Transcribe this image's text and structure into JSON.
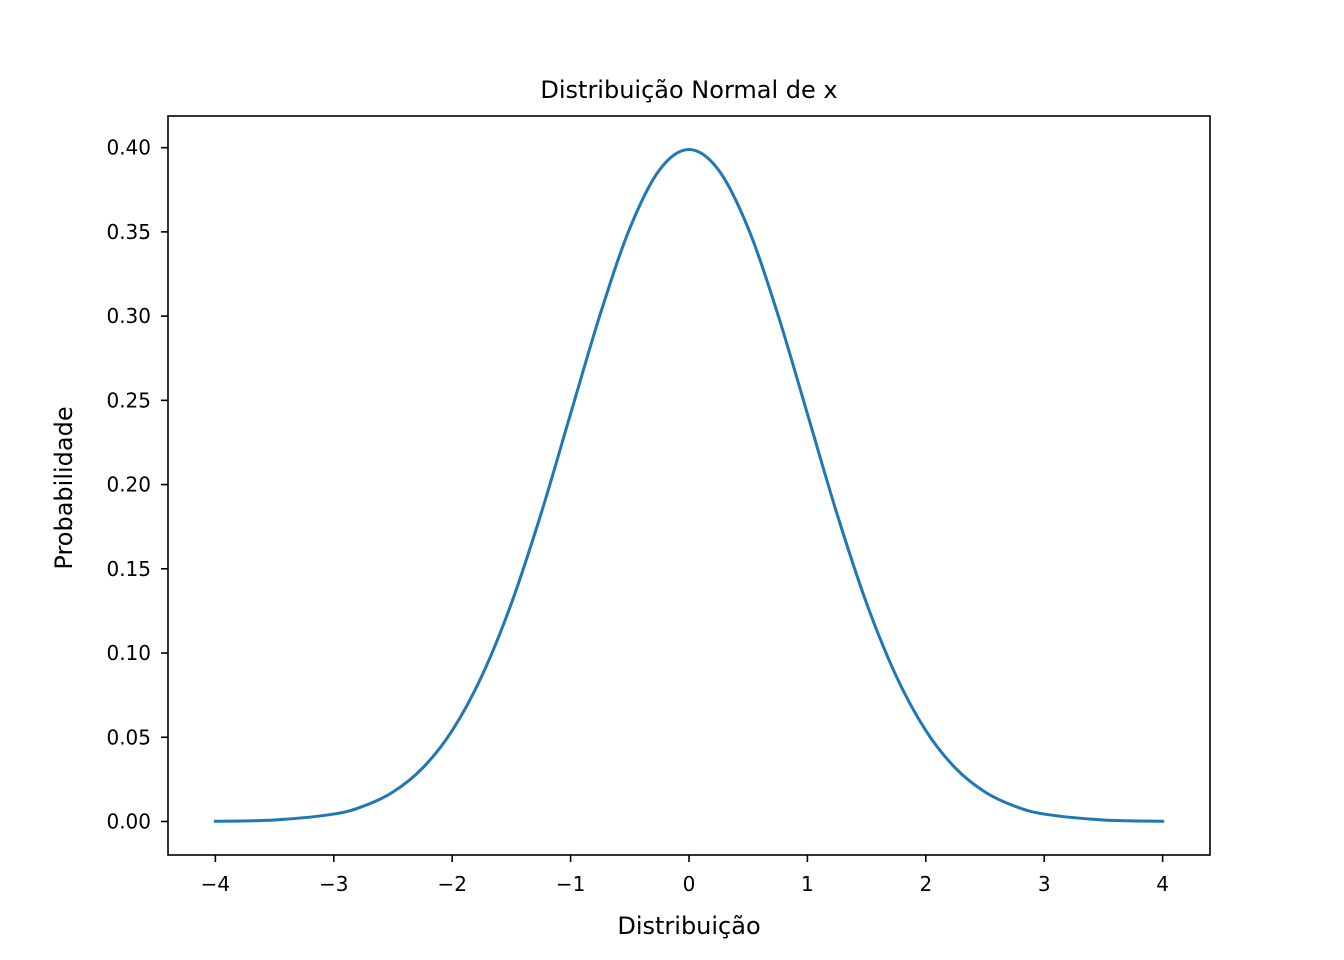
{
  "chart_data": {
    "type": "line",
    "title": "Distribuição Normal de x",
    "xlabel": "Distribuição",
    "ylabel": "Probabilidade",
    "xlim": [
      -4.4,
      4.4
    ],
    "ylim": [
      -0.0199,
      0.4188
    ],
    "x_ticks": [
      -4,
      -3,
      -2,
      -1,
      0,
      1,
      2,
      3,
      4
    ],
    "x_tick_labels": [
      "−4",
      "−3",
      "−2",
      "−1",
      "0",
      "1",
      "2",
      "3",
      "4"
    ],
    "y_ticks": [
      0.0,
      0.05,
      0.1,
      0.15,
      0.2,
      0.25,
      0.3,
      0.35,
      0.4
    ],
    "y_tick_labels": [
      "0.00",
      "0.05",
      "0.10",
      "0.15",
      "0.20",
      "0.25",
      "0.30",
      "0.35",
      "0.40"
    ],
    "grid": false,
    "series": [
      {
        "color": "#1f77b4",
        "x": [
          -4.0,
          -3.5,
          -3.0,
          -2.75,
          -2.5,
          -2.25,
          -2.0,
          -1.75,
          -1.5,
          -1.25,
          -1.0,
          -0.75,
          -0.5,
          -0.25,
          0.0,
          0.25,
          0.5,
          0.75,
          1.0,
          1.25,
          1.5,
          1.75,
          2.0,
          2.25,
          2.5,
          2.75,
          3.0,
          3.5,
          4.0
        ],
        "values": [
          0.0001,
          0.0009,
          0.0044,
          0.0091,
          0.0175,
          0.0317,
          0.054,
          0.0863,
          0.1295,
          0.1826,
          0.242,
          0.3011,
          0.3521,
          0.3867,
          0.3989,
          0.3867,
          0.3521,
          0.3011,
          0.242,
          0.1826,
          0.1295,
          0.0863,
          0.054,
          0.0317,
          0.0175,
          0.0091,
          0.0044,
          0.0009,
          0.0001
        ]
      }
    ]
  }
}
